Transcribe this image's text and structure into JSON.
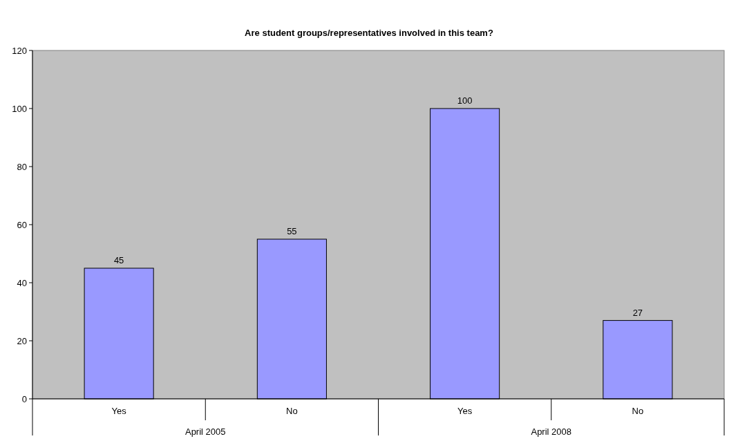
{
  "chart_data": {
    "type": "bar",
    "title": "Are student groups/representatives involved in this team?",
    "categories": [
      "Yes",
      "No",
      "Yes",
      "No"
    ],
    "values": [
      45,
      55,
      100,
      27
    ],
    "color": "#9999ff",
    "ylim": [
      0,
      120
    ],
    "yticks": [
      0,
      20,
      40,
      60,
      80,
      100,
      120
    ],
    "grid": false,
    "data_labels": true,
    "annotations": [
      "April 2005",
      "April 2008"
    ]
  }
}
